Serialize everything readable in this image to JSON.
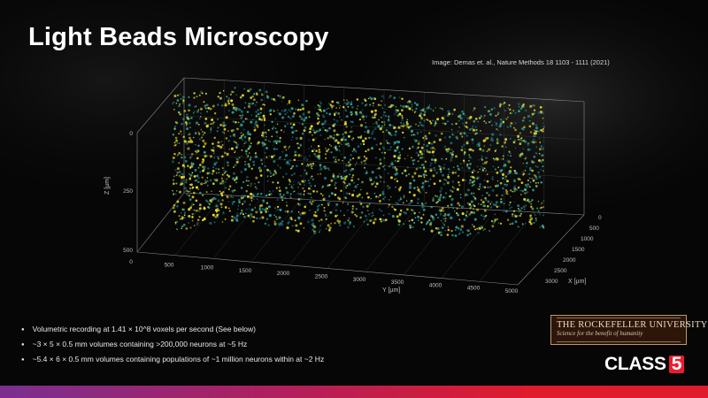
{
  "slide": {
    "title": "Light Beads Microscopy",
    "credit": "Image: Demas et. al., Nature Methods 18 1103 - 1111 (2021)"
  },
  "plot": {
    "z_axis_label": "Z [µm]",
    "x_axis_label": "X [µm]",
    "y_axis_label": "Y [µm]",
    "z_ticks": [
      "0",
      "250",
      "500"
    ],
    "y_ticks": [
      "0",
      "500",
      "1000",
      "1500",
      "2000",
      "2500",
      "3000",
      "3500",
      "4000",
      "4500",
      "5000"
    ],
    "x_ticks": [
      "0",
      "500",
      "1000",
      "1500",
      "2000",
      "2500",
      "3000"
    ],
    "colors": {
      "bright": "#e8dc2a",
      "mid": "#2fa39a",
      "dim": "#1b5f6c"
    }
  },
  "bullets": [
    "Volumetric recording at 1.41 × 10^8 voxels per second (See below)",
    "~3 × 5 × 0.5 mm volumes containing >200,000 neurons at ~5 Hz",
    "~5.4 × 6 × 0.5 mm volumes containing populations of ~1 million neurons within at ~2 Hz"
  ],
  "logo": {
    "name": "THE ROCKEFELLER UNIVERSITY",
    "tagline": "Science for the benefit of humanity"
  },
  "brand": {
    "word": "CLASS",
    "number": "5"
  },
  "theme": {
    "gradient_start": "#7a2f8f",
    "gradient_end": "#e11c2a",
    "brand_red": "#ec1c2e"
  }
}
